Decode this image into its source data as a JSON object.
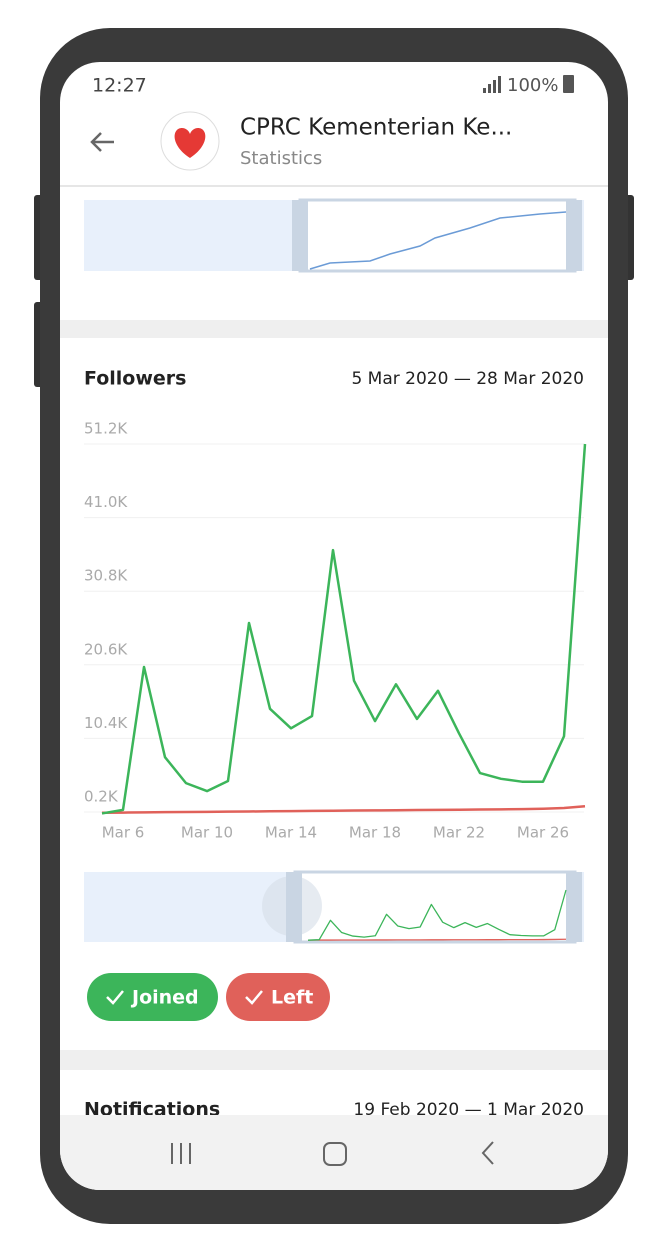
{
  "status_bar": {
    "time": "12:27",
    "battery": "100%"
  },
  "header": {
    "title": "CPRC Kementerian Ke...",
    "subtitle": "Statistics"
  },
  "chart_data": {
    "type": "line",
    "title": "Followers",
    "subtitle": "5 Mar 2020 — 28 Mar 2020",
    "categories": [
      null,
      "Mar 6",
      null,
      null,
      null,
      "Mar 10",
      null,
      null,
      null,
      "Mar 14",
      null,
      null,
      null,
      "Mar 18",
      null,
      null,
      null,
      "Mar 22",
      null,
      null,
      null,
      "Mar 26",
      null,
      null
    ],
    "series": [
      {
        "name": "Joined",
        "color": "#3cb55a",
        "values": [
          0,
          500,
          20300,
          7800,
          4200,
          3100,
          4500,
          26400,
          14500,
          11800,
          13500,
          36500,
          18400,
          12800,
          17900,
          13100,
          17000,
          11100,
          5600,
          4800,
          4400,
          4400,
          10700,
          51200
        ]
      },
      {
        "name": "Left",
        "color": "#e0615a",
        "values": [
          100,
          120,
          150,
          180,
          200,
          220,
          250,
          270,
          300,
          320,
          350,
          370,
          400,
          420,
          450,
          470,
          500,
          520,
          550,
          570,
          600,
          650,
          750,
          1000
        ]
      }
    ],
    "ylim": [
      200,
      51200
    ],
    "yticks": [
      {
        "value": 200,
        "label": "0.2K"
      },
      {
        "value": 10400,
        "label": "10.4K"
      },
      {
        "value": 20600,
        "label": "20.6K"
      },
      {
        "value": 30800,
        "label": "30.8K"
      },
      {
        "value": 41000,
        "label": "41.0K"
      },
      {
        "value": 51200,
        "label": "51.2K"
      }
    ],
    "grid": true
  },
  "next_section": {
    "title": "Notifications",
    "range": "19 Feb 2020 — 1 Mar 2020"
  }
}
